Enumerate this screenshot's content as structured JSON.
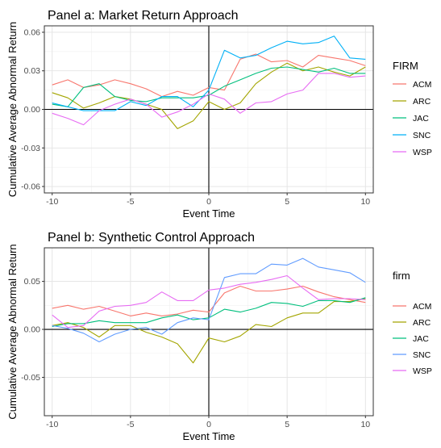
{
  "chart_data": [
    {
      "type": "line",
      "title": "Panel a: Market Return Approach",
      "xlabel": "Event Time",
      "ylabel": "Cumulative Average Abnormal Return",
      "xlim": [
        -10.5,
        10.5
      ],
      "ylim": [
        -0.065,
        0.065
      ],
      "x_ticks": [
        -10,
        -5,
        0,
        5,
        10
      ],
      "x_tick_labels": [
        "-10",
        "-5",
        "0",
        "5",
        "10"
      ],
      "y_ticks": [
        -0.06,
        -0.03,
        0.0,
        0.03,
        0.06
      ],
      "y_tick_labels": [
        "-0.06",
        "-0.03",
        "0.00",
        "0.03",
        "0.06"
      ],
      "grid": true,
      "reference_lines": {
        "x": 0,
        "y": 0
      },
      "legend": {
        "title": "FIRM",
        "position": "right"
      },
      "x": [
        -10,
        -9,
        -8,
        -7,
        -6,
        -5,
        -4,
        -3,
        -2,
        -1,
        0,
        1,
        2,
        3,
        4,
        5,
        6,
        7,
        8,
        9,
        10
      ],
      "series": [
        {
          "name": "ACM",
          "color": "#F8766D",
          "values": [
            0.019,
            0.023,
            0.017,
            0.019,
            0.023,
            0.02,
            0.016,
            0.01,
            0.014,
            0.011,
            0.017,
            0.015,
            0.039,
            0.043,
            0.037,
            0.038,
            0.033,
            0.042,
            0.04,
            0.038,
            0.034
          ]
        },
        {
          "name": "ARC",
          "color": "#A3A500",
          "values": [
            0.013,
            0.009,
            0.001,
            0.005,
            0.01,
            0.008,
            0.004,
            0.0,
            -0.015,
            -0.009,
            0.006,
            0.0,
            0.005,
            0.02,
            0.029,
            0.036,
            0.03,
            0.033,
            0.029,
            0.026,
            0.033
          ]
        },
        {
          "name": "JAC",
          "color": "#00BF7D",
          "values": [
            0.004,
            0.002,
            0.017,
            0.02,
            0.01,
            0.007,
            0.006,
            0.009,
            0.009,
            0.009,
            0.011,
            0.018,
            0.023,
            0.028,
            0.032,
            0.033,
            0.031,
            0.029,
            0.032,
            0.028,
            0.028
          ]
        },
        {
          "name": "SNC",
          "color": "#00B0F6",
          "values": [
            0.005,
            0.002,
            -0.001,
            -0.001,
            -0.001,
            0.006,
            0.003,
            0.01,
            0.01,
            0.002,
            0.015,
            0.046,
            0.04,
            0.042,
            0.048,
            0.053,
            0.051,
            0.052,
            0.057,
            0.04,
            0.039
          ]
        },
        {
          "name": "WSP",
          "color": "#E76BF3",
          "values": [
            -0.003,
            -0.007,
            -0.012,
            -0.001,
            0.004,
            0.008,
            0.004,
            -0.006,
            -0.002,
            0.004,
            0.012,
            0.008,
            -0.003,
            0.005,
            0.006,
            0.012,
            0.015,
            0.028,
            0.028,
            0.025,
            0.026
          ]
        }
      ]
    },
    {
      "type": "line",
      "title": "Panel b: Synthetic Control Approach",
      "xlabel": "Event Time",
      "ylabel": "Cumulative Average Abnormal Return",
      "xlim": [
        -10.5,
        10.5
      ],
      "ylim": [
        -0.09,
        0.085
      ],
      "x_ticks": [
        -10,
        -5,
        0,
        5,
        10
      ],
      "x_tick_labels": [
        "-10",
        "-5",
        "0",
        "5",
        "10"
      ],
      "y_ticks": [
        -0.05,
        0.0,
        0.05
      ],
      "y_tick_labels": [
        "-0.05",
        "0.00",
        "0.05"
      ],
      "grid": true,
      "reference_lines": {
        "x": 0,
        "y": 0
      },
      "legend": {
        "title": "firm",
        "position": "right"
      },
      "x": [
        -10,
        -9,
        -8,
        -7,
        -6,
        -5,
        -4,
        -3,
        -2,
        -1,
        0,
        1,
        2,
        3,
        4,
        5,
        6,
        7,
        8,
        9,
        10
      ],
      "series": [
        {
          "name": "ACM",
          "color": "#F8766D",
          "values": [
            0.022,
            0.025,
            0.021,
            0.024,
            0.019,
            0.014,
            0.017,
            0.014,
            0.016,
            0.02,
            0.018,
            0.038,
            0.045,
            0.04,
            0.04,
            0.042,
            0.045,
            0.039,
            0.034,
            0.031,
            0.028
          ]
        },
        {
          "name": "ARC",
          "color": "#A3A500",
          "values": [
            0.004,
            0.007,
            0.002,
            -0.008,
            0.004,
            0.004,
            -0.003,
            -0.008,
            -0.015,
            -0.035,
            -0.009,
            -0.013,
            -0.007,
            0.005,
            0.003,
            0.012,
            0.017,
            0.017,
            0.029,
            0.029,
            0.032
          ]
        },
        {
          "name": "JAC",
          "color": "#00BF7D",
          "values": [
            0.003,
            0.006,
            0.006,
            0.009,
            0.007,
            0.007,
            0.007,
            0.012,
            0.015,
            0.01,
            0.012,
            0.021,
            0.018,
            0.022,
            0.028,
            0.027,
            0.024,
            0.03,
            0.03,
            0.028,
            0.033
          ]
        },
        {
          "name": "SNC",
          "color": "#619CFF",
          "values": [
            0.004,
            0.001,
            -0.004,
            -0.013,
            -0.005,
            0.0,
            0.002,
            -0.005,
            0.007,
            0.012,
            0.01,
            0.054,
            0.058,
            0.058,
            0.068,
            0.067,
            0.074,
            0.065,
            0.062,
            0.059,
            0.049
          ]
        },
        {
          "name": "WSP",
          "color": "#E76BF3",
          "values": [
            0.015,
            0.002,
            0.004,
            0.019,
            0.024,
            0.025,
            0.028,
            0.039,
            0.03,
            0.03,
            0.041,
            0.043,
            0.047,
            0.049,
            0.052,
            0.056,
            0.043,
            0.031,
            0.032,
            0.032,
            0.031
          ]
        }
      ]
    }
  ]
}
